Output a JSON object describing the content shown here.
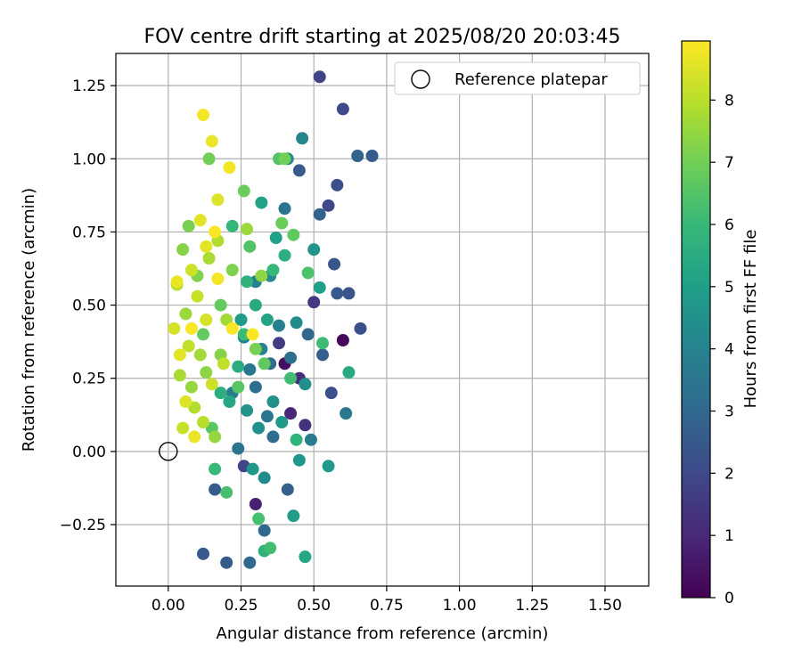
{
  "chart_data": {
    "type": "scatter",
    "title": "FOV centre drift starting at 2025/08/20 20:03:45",
    "xlabel": "Angular distance from reference (arcmin)",
    "ylabel": "Rotation from reference (arcmin)",
    "xlim": [
      -0.18,
      1.65
    ],
    "ylim": [
      -0.46,
      1.36
    ],
    "xticks": [
      0.0,
      0.25,
      0.5,
      0.75,
      1.0,
      1.25,
      1.5
    ],
    "xtick_labels": [
      "0.00",
      "0.25",
      "0.50",
      "0.75",
      "1.00",
      "1.25",
      "1.50"
    ],
    "yticks": [
      -0.25,
      0.0,
      0.25,
      0.5,
      0.75,
      1.0,
      1.25
    ],
    "ytick_labels": [
      "−0.25",
      "0.00",
      "0.25",
      "0.50",
      "0.75",
      "1.00",
      "1.25"
    ],
    "grid": true,
    "legend": {
      "placement": "top-right",
      "entries": [
        {
          "label": "Reference platepar",
          "marker": "open-circle"
        }
      ]
    },
    "colorbar": {
      "label": "Hours from first FF file",
      "range": [
        0,
        8.95
      ],
      "ticks": [
        0,
        1,
        2,
        3,
        4,
        5,
        6,
        7,
        8
      ],
      "tick_labels": [
        "0",
        "1",
        "2",
        "3",
        "4",
        "5",
        "6",
        "7",
        "8"
      ],
      "colormap": "viridis",
      "colormap_stops": [
        "#440154",
        "#482878",
        "#3e4989",
        "#31688e",
        "#26828e",
        "#1f9e89",
        "#35b779",
        "#6ece58",
        "#b5de2b",
        "#fde725"
      ]
    },
    "reference_point": {
      "x": 0.0,
      "y": 0.0,
      "label": "Reference platepar"
    },
    "series": [
      {
        "points": [
          [
            0.4,
            0.3,
            0.3
          ],
          [
            0.6,
            0.38,
            0.2
          ],
          [
            0.3,
            -0.18,
            0.8
          ],
          [
            0.42,
            0.13,
            1.0
          ],
          [
            0.45,
            0.25,
            1.1
          ],
          [
            0.47,
            0.09,
            1.3
          ],
          [
            0.5,
            0.51,
            1.5
          ],
          [
            0.38,
            0.37,
            1.6
          ],
          [
            0.26,
            -0.05,
            1.9
          ],
          [
            0.52,
            1.28,
            1.8
          ],
          [
            0.55,
            0.84,
            1.9
          ],
          [
            0.6,
            1.17,
            2.0
          ],
          [
            0.58,
            0.91,
            2.2
          ],
          [
            0.66,
            0.42,
            2.2
          ],
          [
            0.62,
            0.54,
            2.3
          ],
          [
            0.56,
            0.2,
            2.2
          ],
          [
            0.57,
            0.64,
            2.4
          ],
          [
            0.45,
            0.96,
            2.5
          ],
          [
            0.58,
            0.54,
            2.5
          ],
          [
            0.12,
            -0.35,
            2.5
          ],
          [
            0.2,
            -0.38,
            2.6
          ],
          [
            0.16,
            -0.13,
            2.6
          ],
          [
            0.53,
            0.33,
            2.7
          ],
          [
            0.41,
            -0.13,
            2.7
          ],
          [
            0.65,
            1.01,
            2.8
          ],
          [
            0.7,
            1.01,
            2.6
          ],
          [
            0.52,
            0.81,
            2.8
          ],
          [
            0.28,
            -0.38,
            3.0
          ],
          [
            0.33,
            -0.27,
            3.0
          ],
          [
            0.48,
            0.4,
            3.0
          ],
          [
            0.35,
            0.3,
            3.1
          ],
          [
            0.3,
            0.22,
            3.2
          ],
          [
            0.36,
            0.05,
            3.2
          ],
          [
            0.42,
            0.32,
            3.3
          ],
          [
            0.4,
            0.83,
            3.4
          ],
          [
            0.24,
            0.01,
            3.5
          ],
          [
            0.34,
            0.12,
            3.5
          ],
          [
            0.61,
            0.13,
            3.6
          ],
          [
            0.28,
            0.28,
            3.6
          ],
          [
            0.49,
            0.04,
            3.7
          ],
          [
            0.38,
            0.43,
            3.8
          ],
          [
            0.22,
            0.2,
            3.8
          ],
          [
            0.3,
            0.58,
            3.9
          ],
          [
            0.32,
            0.35,
            4.0
          ],
          [
            0.26,
            0.39,
            4.0
          ],
          [
            0.46,
            1.07,
            4.1
          ],
          [
            0.41,
            1.0,
            4.2
          ],
          [
            0.35,
            0.6,
            4.2
          ],
          [
            0.44,
            0.44,
            4.3
          ],
          [
            0.33,
            -0.09,
            4.3
          ],
          [
            0.47,
            0.23,
            4.4
          ],
          [
            0.36,
            0.17,
            4.5
          ],
          [
            0.31,
            0.08,
            4.5
          ],
          [
            0.5,
            0.69,
            4.6
          ],
          [
            0.27,
            0.14,
            4.6
          ],
          [
            0.45,
            -0.03,
            4.7
          ],
          [
            0.29,
            -0.06,
            4.7
          ],
          [
            0.55,
            -0.05,
            4.8
          ],
          [
            0.39,
            0.1,
            4.8
          ],
          [
            0.25,
            0.45,
            4.9
          ],
          [
            0.43,
            -0.22,
            4.9
          ],
          [
            0.52,
            0.56,
            5.0
          ],
          [
            0.37,
            0.73,
            5.0
          ],
          [
            0.32,
            0.85,
            5.1
          ],
          [
            0.34,
            0.45,
            5.2
          ],
          [
            0.21,
            0.17,
            5.3
          ],
          [
            0.47,
            -0.36,
            5.3
          ],
          [
            0.3,
            0.5,
            5.4
          ],
          [
            0.62,
            0.27,
            5.4
          ],
          [
            0.24,
            0.29,
            5.5
          ],
          [
            0.4,
            0.67,
            5.6
          ],
          [
            0.18,
            0.2,
            5.6
          ],
          [
            0.33,
            -0.34,
            5.7
          ],
          [
            0.27,
            0.58,
            5.7
          ],
          [
            0.44,
            0.04,
            5.8
          ],
          [
            0.22,
            0.77,
            5.9
          ],
          [
            0.36,
            0.62,
            6.0
          ],
          [
            0.16,
            -0.06,
            6.0
          ],
          [
            0.53,
            0.37,
            6.1
          ],
          [
            0.26,
            0.4,
            6.1
          ],
          [
            0.42,
            0.25,
            6.2
          ],
          [
            0.35,
            -0.33,
            6.2
          ],
          [
            0.2,
            -0.14,
            6.3
          ],
          [
            0.31,
            -0.23,
            6.3
          ],
          [
            0.48,
            0.61,
            6.4
          ],
          [
            0.38,
            1.0,
            6.5
          ],
          [
            0.28,
            0.7,
            6.5
          ],
          [
            0.24,
            0.22,
            6.6
          ],
          [
            0.15,
            0.08,
            6.6
          ],
          [
            0.43,
            0.74,
            6.7
          ],
          [
            0.33,
            0.3,
            6.7
          ],
          [
            0.18,
            0.5,
            6.8
          ],
          [
            0.12,
            0.4,
            6.8
          ],
          [
            0.39,
            0.78,
            6.9
          ],
          [
            0.26,
            0.89,
            6.9
          ],
          [
            0.4,
            1.0,
            7.0
          ],
          [
            0.14,
            1.0,
            7.0
          ],
          [
            0.3,
            0.35,
            7.1
          ],
          [
            0.07,
            0.77,
            7.1
          ],
          [
            0.1,
            0.6,
            7.2
          ],
          [
            0.22,
            0.62,
            7.2
          ],
          [
            0.05,
            0.69,
            7.3
          ],
          [
            0.18,
            0.33,
            7.3
          ],
          [
            0.32,
            0.6,
            7.4
          ],
          [
            0.13,
            0.27,
            7.4
          ],
          [
            0.08,
            0.22,
            7.5
          ],
          [
            0.16,
            0.05,
            7.5
          ],
          [
            0.27,
            0.76,
            7.6
          ],
          [
            0.06,
            0.47,
            7.6
          ],
          [
            0.11,
            0.33,
            7.7
          ],
          [
            0.2,
            0.45,
            7.7
          ],
          [
            0.04,
            0.26,
            7.8
          ],
          [
            0.14,
            0.66,
            7.8
          ],
          [
            0.09,
            0.15,
            7.9
          ],
          [
            0.17,
            0.72,
            7.9
          ],
          [
            0.03,
            0.57,
            8.0
          ],
          [
            0.12,
            0.1,
            8.0
          ],
          [
            0.07,
            0.36,
            8.1
          ],
          [
            0.19,
            0.3,
            8.1
          ],
          [
            0.05,
            0.08,
            8.2
          ],
          [
            0.1,
            0.53,
            8.2
          ],
          [
            0.15,
            0.23,
            8.3
          ],
          [
            0.08,
            0.62,
            8.3
          ],
          [
            0.02,
            0.42,
            8.4
          ],
          [
            0.13,
            0.45,
            8.4
          ],
          [
            0.06,
            0.17,
            8.5
          ],
          [
            0.17,
            0.86,
            8.5
          ],
          [
            0.11,
            0.79,
            8.6
          ],
          [
            0.04,
            0.33,
            8.6
          ],
          [
            0.09,
            0.05,
            8.7
          ],
          [
            0.15,
            1.06,
            8.7
          ],
          [
            0.21,
            0.97,
            8.8
          ],
          [
            0.12,
            1.15,
            8.8
          ],
          [
            0.16,
            0.75,
            8.9
          ],
          [
            0.08,
            0.42,
            8.9
          ],
          [
            0.29,
            0.4,
            8.9
          ],
          [
            0.22,
            0.42,
            8.9
          ],
          [
            0.17,
            0.59,
            8.8
          ],
          [
            0.03,
            0.58,
            8.7
          ],
          [
            0.13,
            0.7,
            8.6
          ]
        ]
      }
    ]
  }
}
